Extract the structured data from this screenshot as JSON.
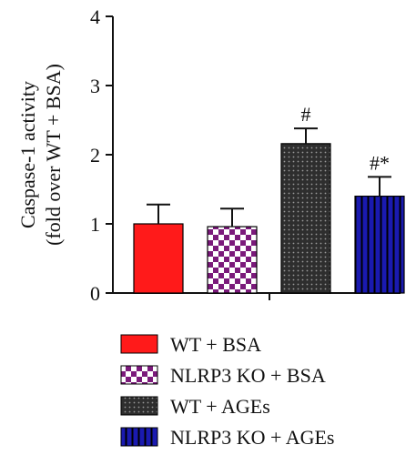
{
  "chart_data": {
    "type": "bar",
    "ylabel_lines": [
      "Caspase-1 activity",
      "(fold over WT + BSA)"
    ],
    "ylim": [
      0,
      4
    ],
    "yticks": [
      "0",
      "1",
      "2",
      "3",
      "4"
    ],
    "categories": [
      "WT + BSA",
      "NLRP3 KO + BSA",
      "WT + AGEs",
      "NLRP3 KO + AGEs"
    ],
    "values": [
      1.0,
      0.96,
      2.16,
      1.4
    ],
    "errors": [
      0.28,
      0.26,
      0.22,
      0.28
    ],
    "annotations": [
      "",
      "",
      "#",
      "#*"
    ],
    "colors": [
      "#ff1a1a",
      "#7b1a7b",
      "#3a3a3a",
      "#1a1ab0"
    ],
    "fills": [
      "solid",
      "checker",
      "dots",
      "stripes"
    ],
    "legend_position": "bottom",
    "grid": false
  }
}
